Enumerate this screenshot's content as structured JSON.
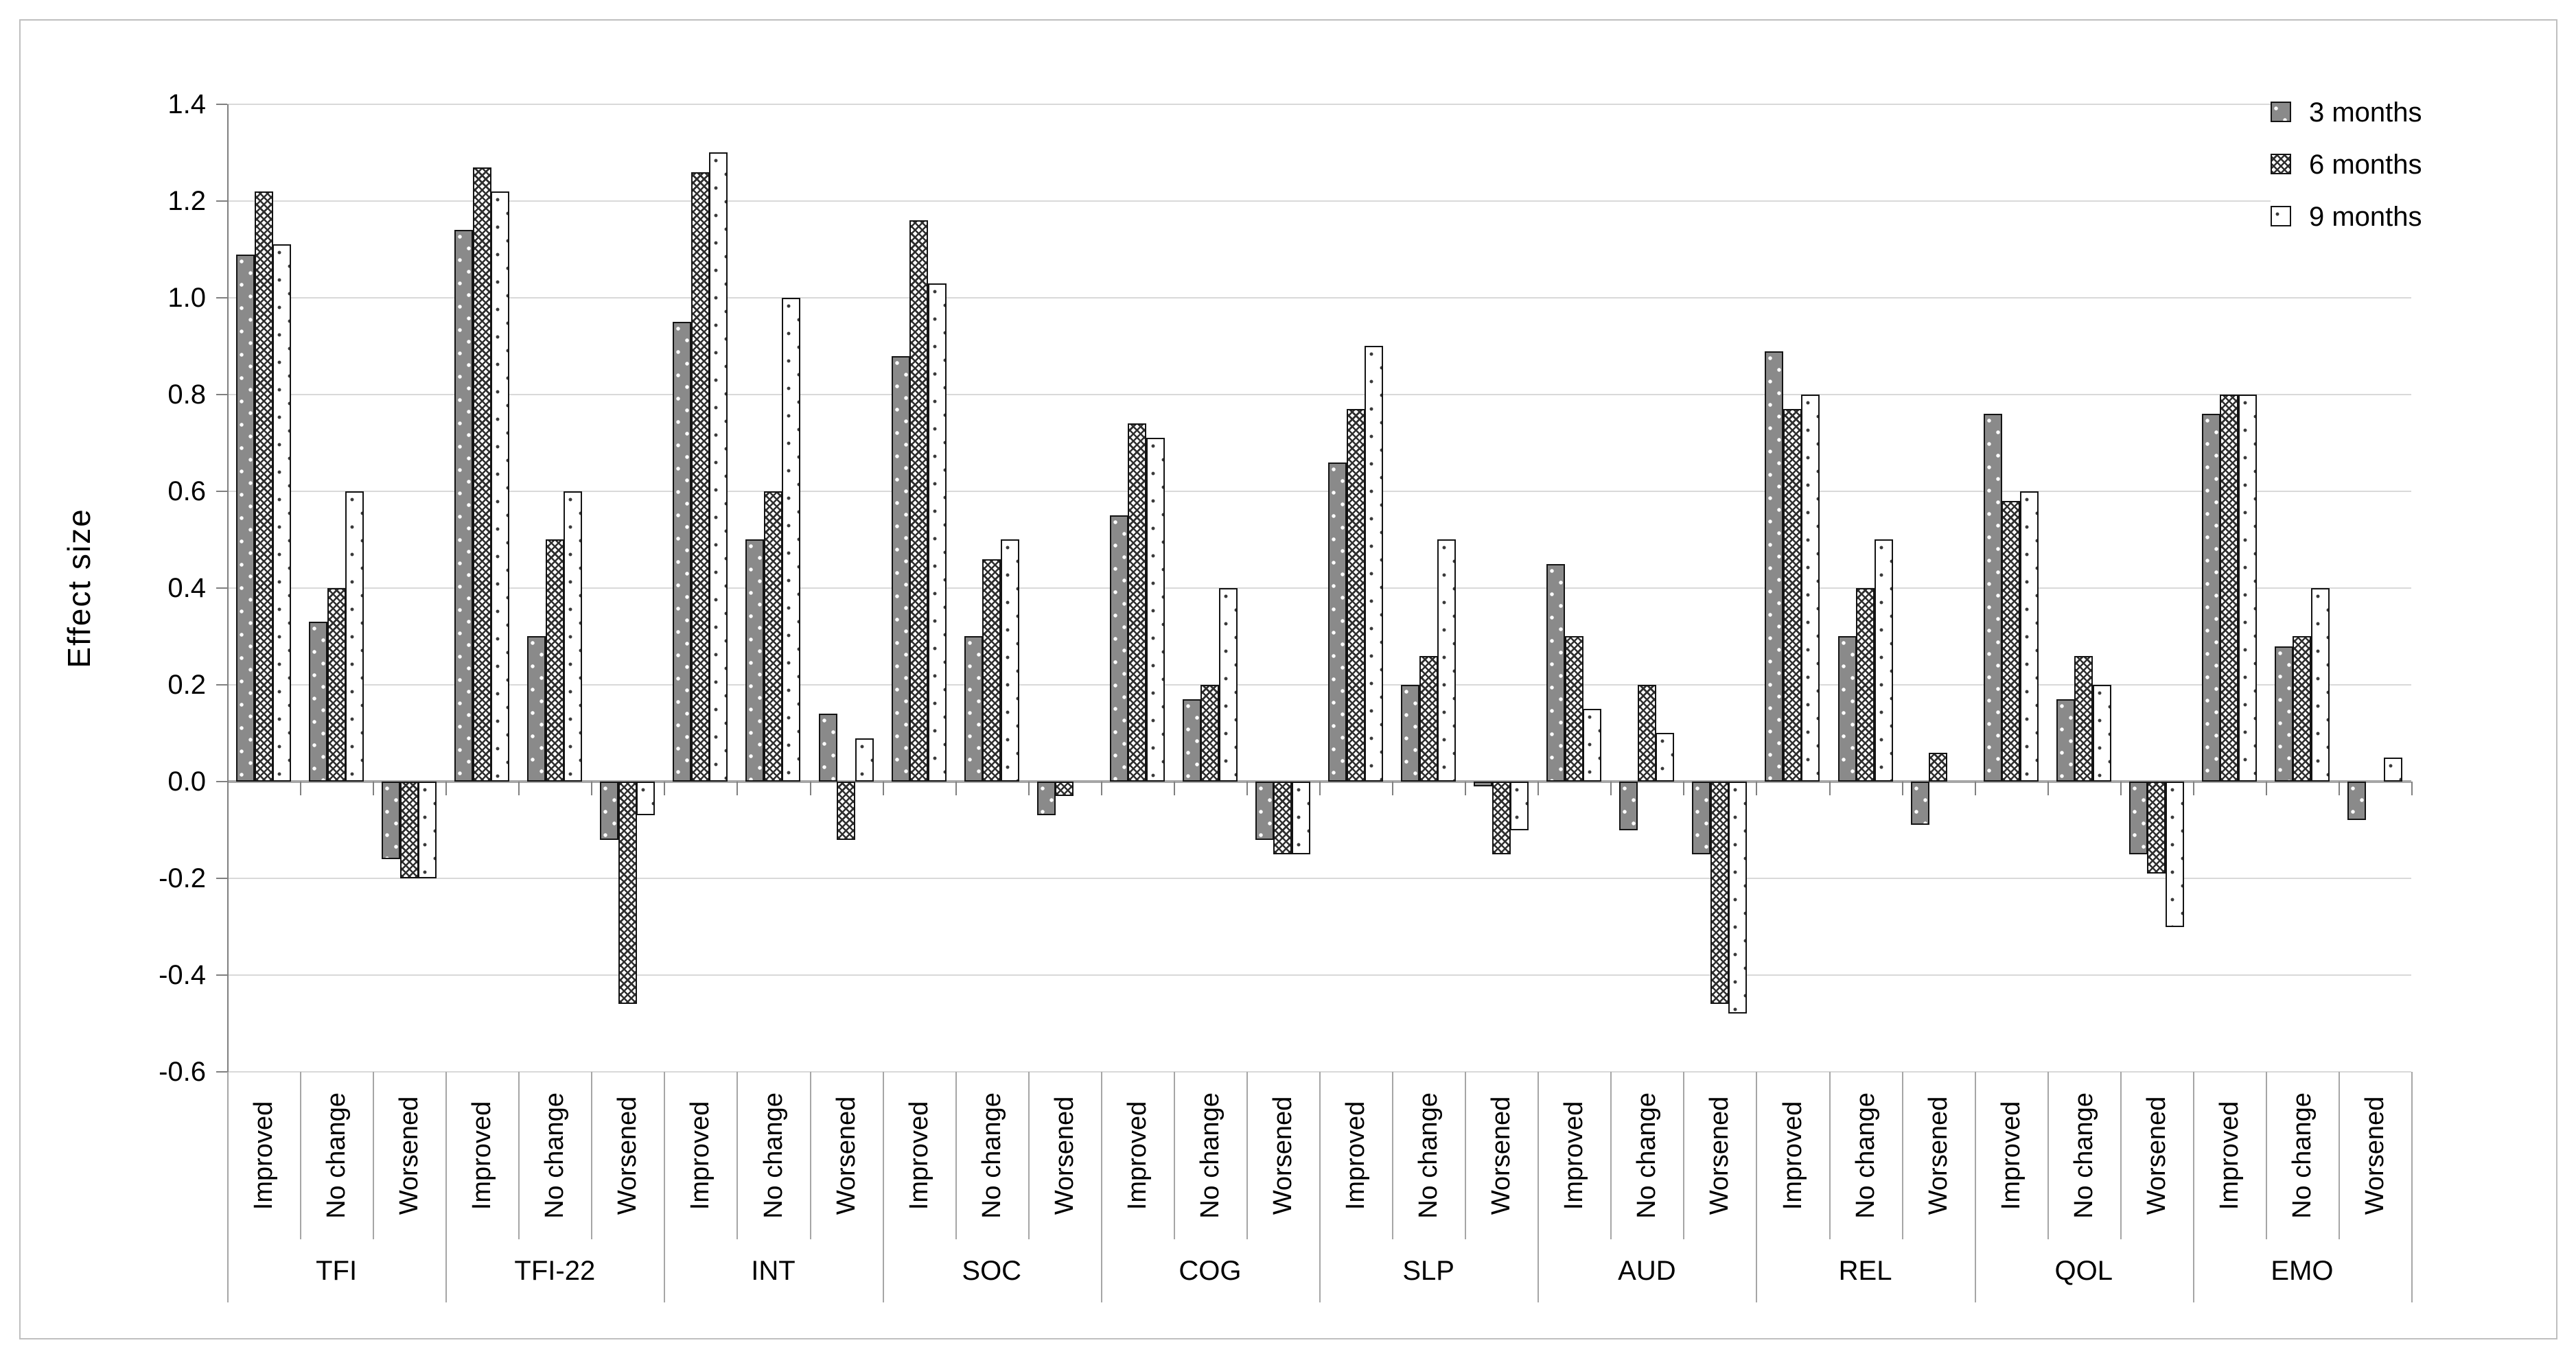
{
  "chart_data": {
    "type": "bar",
    "title": "",
    "ylabel": "Effect size",
    "xlabel": "",
    "ylim": [
      -0.6,
      1.4
    ],
    "ytick_step": 0.2,
    "grid": true,
    "legend_position": "top-right",
    "groups": [
      "TFI",
      "TFI-22",
      "INT",
      "SOC",
      "COG",
      "SLP",
      "AUD",
      "REL",
      "QOL",
      "EMO"
    ],
    "subcategories": [
      "Improved",
      "No change",
      "Worsened"
    ],
    "series": [
      {
        "name": "3 months",
        "pattern": "gray-with-white-dots",
        "values": [
          [
            1.09,
            0.33,
            -0.16
          ],
          [
            1.14,
            0.3,
            -0.12
          ],
          [
            0.95,
            0.5,
            0.14
          ],
          [
            0.88,
            0.3,
            -0.07
          ],
          [
            0.55,
            0.17,
            -0.12
          ],
          [
            0.66,
            0.2,
            -0.01
          ],
          [
            0.45,
            -0.1,
            -0.15
          ],
          [
            0.89,
            0.3,
            -0.09
          ],
          [
            0.76,
            0.17,
            -0.15
          ],
          [
            0.76,
            0.28,
            -0.08
          ]
        ]
      },
      {
        "name": "6 months",
        "pattern": "white-with-dark-crosshatch",
        "values": [
          [
            1.22,
            0.4,
            -0.2
          ],
          [
            1.27,
            0.5,
            -0.46
          ],
          [
            1.26,
            0.6,
            -0.12
          ],
          [
            1.16,
            0.46,
            -0.03
          ],
          [
            0.74,
            0.2,
            -0.15
          ],
          [
            0.77,
            0.26,
            -0.15
          ],
          [
            0.3,
            0.2,
            -0.46
          ],
          [
            0.77,
            0.4,
            0.06
          ],
          [
            0.58,
            0.26,
            -0.19
          ],
          [
            0.8,
            0.3,
            0
          ]
        ]
      },
      {
        "name": "9 months",
        "pattern": "white-with-dark-dots",
        "values": [
          [
            1.11,
            0.6,
            -0.2
          ],
          [
            1.22,
            0.6,
            -0.07
          ],
          [
            1.3,
            1.0,
            0.09
          ],
          [
            1.03,
            0.5,
            0
          ],
          [
            0.71,
            0.4,
            -0.15
          ],
          [
            0.9,
            0.5,
            -0.1
          ],
          [
            0.15,
            0.1,
            -0.48
          ],
          [
            0.8,
            0.5,
            0
          ],
          [
            0.6,
            0.2,
            -0.3
          ],
          [
            0.8,
            0.4,
            0.05
          ]
        ]
      }
    ],
    "colors": {
      "bar_border": "#141414",
      "series_gray_fill": "#8a8a8a",
      "gridline": "#d9d9d9",
      "zero_axis": "#a6a6a6",
      "axis": "#808080",
      "separator": "#a6a6a6",
      "text": "#000000",
      "frame_border": "#bfbfbf"
    }
  }
}
